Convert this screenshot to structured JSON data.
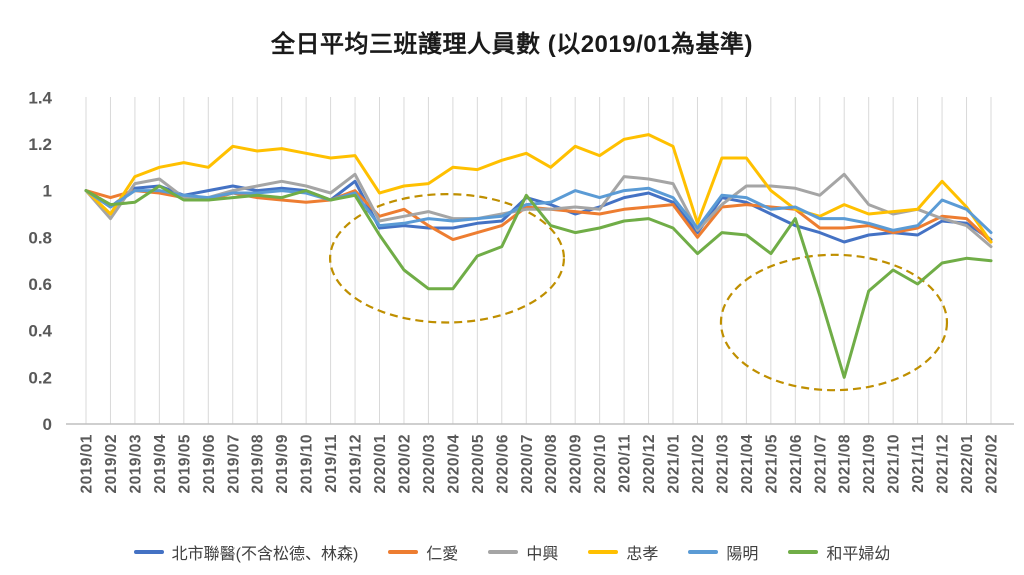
{
  "title": "全日平均三班護理人員數 (以2019/01為基準)",
  "chart_data": {
    "type": "line",
    "title": "全日平均三班護理人員數 (以2019/01為基準)",
    "xlabel": "",
    "ylabel": "",
    "ylim": [
      0,
      1.4
    ],
    "grid": "vertical-only",
    "gridline_color": "#d9d9d9",
    "axis_line_color": "#bfbfbf",
    "axis_text_color": "#595959",
    "legend_position": "bottom",
    "yticks": [
      {
        "label": "0",
        "value": 0
      },
      {
        "label": "0.2",
        "value": 0.2
      },
      {
        "label": "0.4",
        "value": 0.4
      },
      {
        "label": "0.6",
        "value": 0.6
      },
      {
        "label": "0.8",
        "value": 0.8
      },
      {
        "label": "1",
        "value": 1
      },
      {
        "label": "1.2",
        "value": 1.2
      },
      {
        "label": "1.4",
        "value": 1.4
      }
    ],
    "categories": [
      "2019/01",
      "2019/02",
      "2019/03",
      "2019/04",
      "2019/05",
      "2019/06",
      "2019/07",
      "2019/08",
      "2019/09",
      "2019/10",
      "2019/11",
      "2019/12",
      "2020/01",
      "2020/02",
      "2020/03",
      "2020/04",
      "2020/05",
      "2020/06",
      "2020/07",
      "2020/08",
      "2020/09",
      "2020/10",
      "2020/11",
      "2020/12",
      "2021/01",
      "2021/02",
      "2021/03",
      "2021/04",
      "2021/05",
      "2021/06",
      "2021/07",
      "2021/08",
      "2021/09",
      "2021/10",
      "2021/11",
      "2021/12",
      "2022/01",
      "2022/02"
    ],
    "series": [
      {
        "name": "北市聯醫(不含松德、林森)",
        "color": "#4472C4",
        "values": [
          1.0,
          0.93,
          1.01,
          1.02,
          0.98,
          1.0,
          1.02,
          1.0,
          1.01,
          1.0,
          0.96,
          1.04,
          0.84,
          0.85,
          0.84,
          0.84,
          0.86,
          0.87,
          0.97,
          0.94,
          0.9,
          0.93,
          0.97,
          0.99,
          0.95,
          0.82,
          0.97,
          0.95,
          0.9,
          0.85,
          0.82,
          0.78,
          0.81,
          0.82,
          0.81,
          0.87,
          0.86,
          0.79
        ]
      },
      {
        "name": "仁愛",
        "color": "#ED7D31",
        "values": [
          1.0,
          0.97,
          1.0,
          0.99,
          0.97,
          0.96,
          0.99,
          0.97,
          0.96,
          0.95,
          0.96,
          1.0,
          0.89,
          0.92,
          0.85,
          0.79,
          0.82,
          0.85,
          0.93,
          0.92,
          0.91,
          0.9,
          0.92,
          0.93,
          0.94,
          0.8,
          0.93,
          0.94,
          0.93,
          0.92,
          0.84,
          0.84,
          0.85,
          0.82,
          0.84,
          0.89,
          0.88,
          0.78
        ]
      },
      {
        "name": "中興",
        "color": "#A5A5A5",
        "values": [
          1.0,
          0.88,
          1.03,
          1.05,
          0.97,
          0.97,
          1.0,
          1.02,
          1.04,
          1.02,
          0.99,
          1.07,
          0.87,
          0.89,
          0.91,
          0.88,
          0.88,
          0.9,
          0.92,
          0.92,
          0.93,
          0.92,
          1.06,
          1.05,
          1.03,
          0.83,
          0.94,
          1.02,
          1.02,
          1.01,
          0.98,
          1.07,
          0.94,
          0.9,
          0.92,
          0.88,
          0.85,
          0.76
        ]
      },
      {
        "name": "忠孝",
        "color": "#FFC000",
        "values": [
          1.0,
          0.9,
          1.06,
          1.1,
          1.12,
          1.1,
          1.19,
          1.17,
          1.18,
          1.16,
          1.14,
          1.15,
          0.99,
          1.02,
          1.03,
          1.1,
          1.09,
          1.13,
          1.16,
          1.1,
          1.19,
          1.15,
          1.22,
          1.24,
          1.19,
          0.86,
          1.14,
          1.14,
          1.0,
          0.92,
          0.89,
          0.94,
          0.9,
          0.91,
          0.92,
          1.04,
          0.93,
          0.78
        ]
      },
      {
        "name": "陽明",
        "color": "#5B9BD5",
        "values": [
          1.0,
          0.93,
          1.0,
          1.0,
          0.98,
          0.97,
          0.99,
          0.99,
          1.0,
          0.99,
          0.96,
          0.99,
          0.85,
          0.86,
          0.88,
          0.87,
          0.88,
          0.89,
          0.94,
          0.95,
          1.0,
          0.97,
          1.0,
          1.01,
          0.97,
          0.84,
          0.98,
          0.97,
          0.92,
          0.93,
          0.88,
          0.88,
          0.86,
          0.83,
          0.85,
          0.96,
          0.92,
          0.82
        ]
      },
      {
        "name": "和平婦幼",
        "color": "#70AD47",
        "values": [
          1.0,
          0.94,
          0.95,
          1.02,
          0.96,
          0.96,
          0.97,
          0.98,
          0.97,
          1.0,
          0.96,
          0.98,
          0.81,
          0.66,
          0.58,
          0.58,
          0.72,
          0.76,
          0.98,
          0.85,
          0.82,
          0.84,
          0.87,
          0.88,
          0.84,
          0.73,
          0.82,
          0.81,
          0.73,
          0.88,
          0.55,
          0.2,
          0.57,
          0.66,
          0.6,
          0.69,
          0.71,
          0.7
        ]
      }
    ],
    "annotations": [
      {
        "type": "ellipse",
        "style": "dashed",
        "color": "#BF8F00",
        "cx_index": 14.76,
        "cy_value": 0.71,
        "rx_months": 4.78,
        "ry_value": 0.275
      },
      {
        "type": "ellipse",
        "style": "dashed",
        "color": "#BF8F00",
        "cx_index": 30.58,
        "cy_value": 0.435,
        "rx_months": 4.62,
        "ry_value": 0.29
      }
    ]
  }
}
